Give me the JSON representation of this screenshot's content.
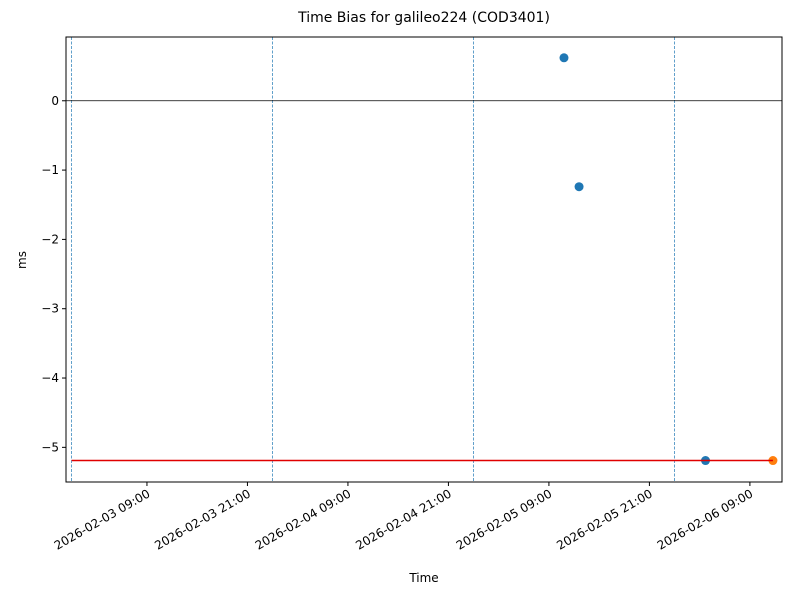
{
  "chart_data": {
    "type": "scatter",
    "title": "Time Bias for galileo224 (COD3401)",
    "x_label": "Time",
    "y_label": "ms",
    "xlim": [
      "2026-02-02 23:20",
      "2026-02-06 12:50"
    ],
    "ylim": [
      -5.5,
      0.92
    ],
    "xticks": [
      "2026-02-03 09:00",
      "2026-02-03 21:00",
      "2026-02-04 09:00",
      "2026-02-04 21:00",
      "2026-02-05 09:00",
      "2026-02-05 21:00",
      "2026-02-06 09:00"
    ],
    "yticks": [
      {
        "value": 0,
        "label": "0"
      },
      {
        "value": -1,
        "label": "−1"
      },
      {
        "value": -2,
        "label": "−2"
      },
      {
        "value": -3,
        "label": "−3"
      },
      {
        "value": -4,
        "label": "−4"
      },
      {
        "value": -5,
        "label": "−5"
      }
    ],
    "hlines": [
      {
        "value": 0,
        "color": "#000000"
      }
    ],
    "vlines": {
      "color": "#1f77b4",
      "x": [
        "2026-02-03 00:00",
        "2026-02-04 00:00",
        "2026-02-05 00:00",
        "2026-02-06 00:00"
      ]
    },
    "series": [
      {
        "type": "scatter",
        "color": "#1f77b4",
        "x": [
          "2026-02-05 10:48",
          "2026-02-05 12:36",
          "2026-02-06 03:42"
        ],
        "values": [
          0.62,
          -1.24,
          -5.19
        ]
      },
      {
        "type": "scatter",
        "color": "#ff7f0e",
        "x": [
          "2026-02-06 11:45"
        ],
        "values": [
          -5.19
        ]
      },
      {
        "type": "line",
        "color": "#e00000",
        "x": [
          "2026-02-03 00:00",
          "2026-02-06 11:45"
        ],
        "values": [
          -5.19,
          -5.19
        ]
      }
    ]
  }
}
